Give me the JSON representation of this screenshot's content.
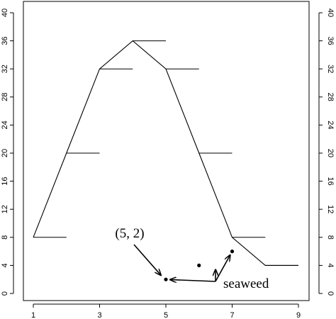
{
  "chart_data": {
    "type": "line",
    "title": "",
    "xlabel": "",
    "ylabel": "",
    "xlim": [
      1,
      9
    ],
    "ylim": [
      0,
      40
    ],
    "x_ticks": [
      1,
      3,
      5,
      7,
      9
    ],
    "y_ticks": [
      0,
      4,
      8,
      12,
      16,
      20,
      24,
      28,
      32,
      36,
      40
    ],
    "grid": false,
    "series": [
      {
        "style": "line",
        "x": [
          1,
          2,
          3,
          4,
          5,
          6,
          7,
          8,
          9
        ],
        "y": [
          8,
          20,
          32,
          36,
          32,
          20,
          8,
          4,
          4
        ]
      },
      {
        "style": "step-segments",
        "x": [
          1,
          2,
          3,
          4,
          5,
          6,
          7,
          8
        ],
        "y": [
          8,
          20,
          32,
          36,
          32,
          20,
          8,
          4
        ]
      },
      {
        "style": "points",
        "x": [
          5,
          6,
          7
        ],
        "y": [
          2,
          4,
          6
        ]
      }
    ],
    "annotations": [
      {
        "text": "(5, 2)",
        "target": [
          5,
          2
        ]
      },
      {
        "text": "seaweed",
        "targets": [
          [
            5,
            2
          ],
          [
            6.5,
            4
          ],
          [
            7,
            6
          ]
        ]
      }
    ]
  }
}
